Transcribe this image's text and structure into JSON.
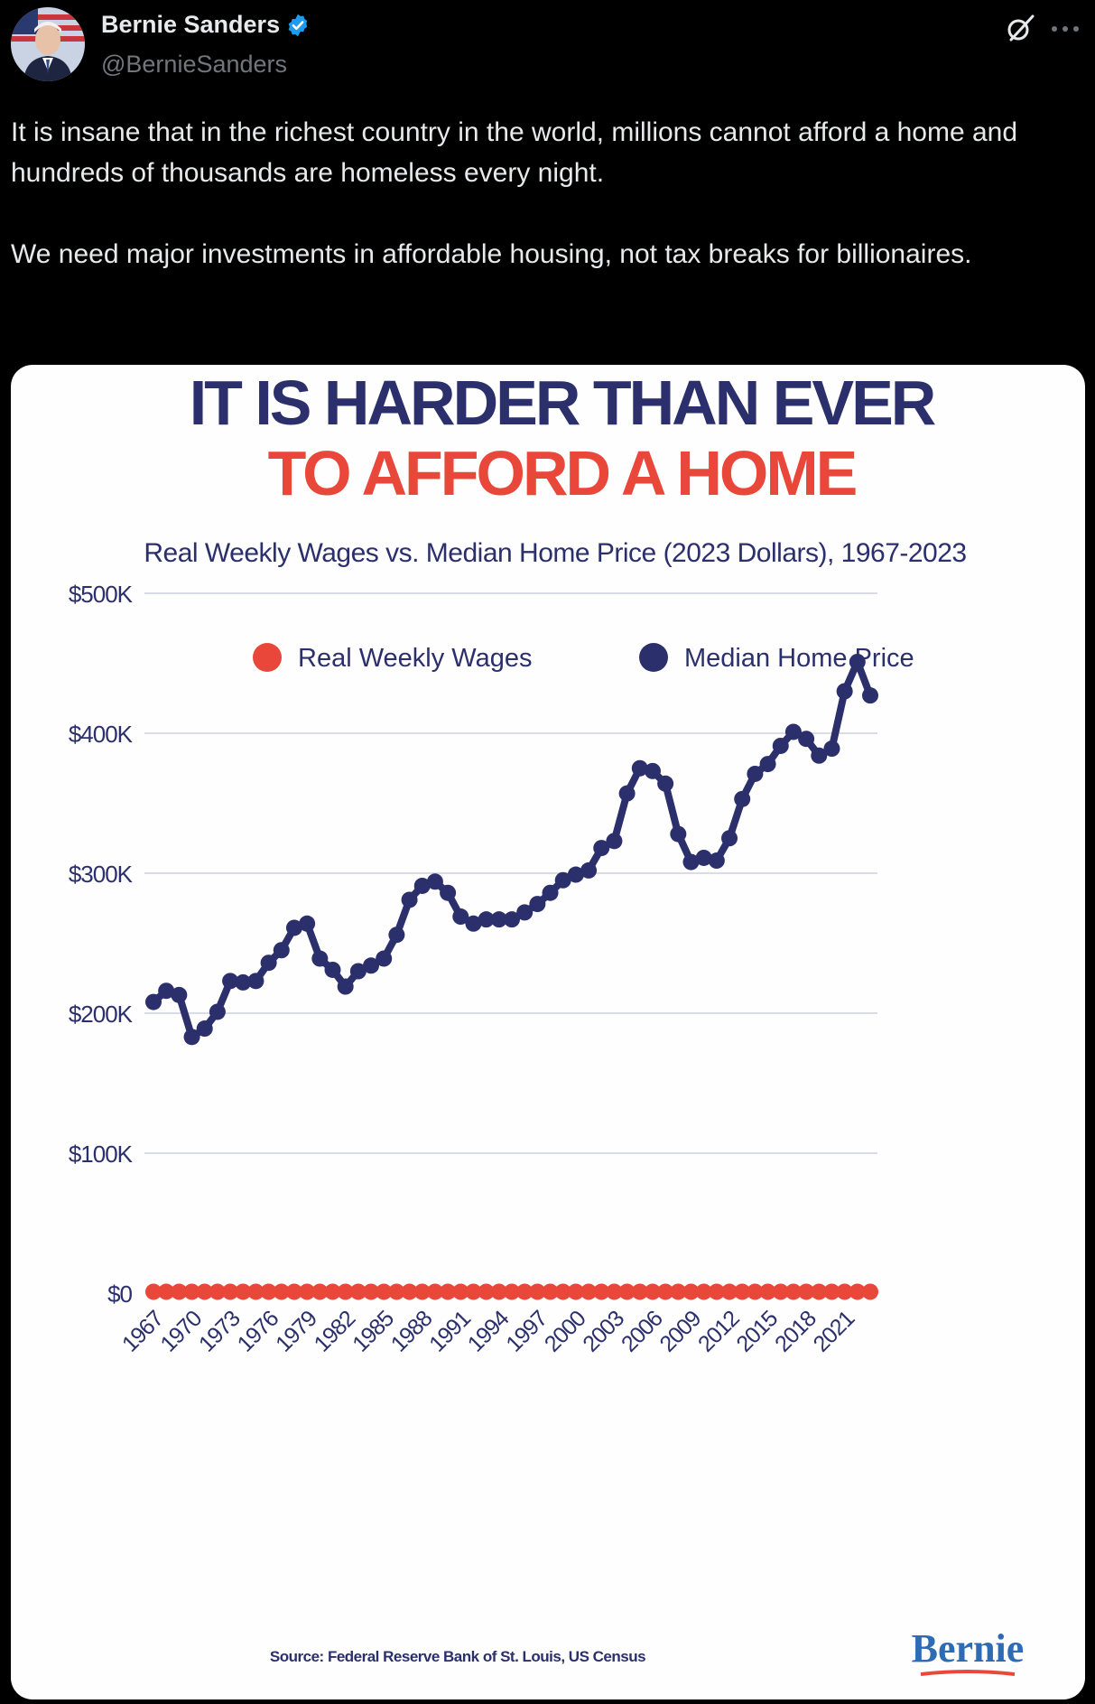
{
  "post": {
    "author_name": "Bernie Sanders",
    "author_handle": "@BernieSanders",
    "paragraphs": [
      "It is insane that in the richest country in the world, millions cannot afford a home and hundreds of thousands are homeless every night.",
      "We need major investments in affordable housing, not tax breaks for billionaires."
    ],
    "icons": {
      "verified": "verified-badge-icon",
      "grok": "grok-icon",
      "more": "more-options-icon"
    }
  },
  "colors": {
    "navy": "#2b2f6b",
    "red": "#e8473a",
    "verified_blue": "#1d9bf0"
  },
  "chart_data": {
    "type": "line",
    "title_line1": "IT IS HARDER THAN EVER",
    "title_line2": "TO AFFORD A HOME",
    "subtitle": "Real Weekly Wages vs. Median Home Price (2023 Dollars), 1967-2023",
    "legend": [
      "Real Weekly Wages",
      "Median Home Price"
    ],
    "legend_placement": "top-center",
    "y_ticks": [
      "$0",
      "$100K",
      "$200K",
      "$300K",
      "$400K",
      "$500K"
    ],
    "y_tick_values": [
      0,
      100000,
      200000,
      300000,
      400000,
      500000
    ],
    "ylim": [
      0,
      500000
    ],
    "x_tick_labels": [
      "1967",
      "1970",
      "1973",
      "1976",
      "1979",
      "1982",
      "1985",
      "1988",
      "1991",
      "1994",
      "1997",
      "2000",
      "2003",
      "2006",
      "2009",
      "2012",
      "2015",
      "2018",
      "2021"
    ],
    "x": [
      1967,
      1968,
      1969,
      1970,
      1971,
      1972,
      1973,
      1974,
      1975,
      1976,
      1977,
      1978,
      1979,
      1980,
      1981,
      1982,
      1983,
      1984,
      1985,
      1986,
      1987,
      1988,
      1989,
      1990,
      1991,
      1992,
      1993,
      1994,
      1995,
      1996,
      1997,
      1998,
      1999,
      2000,
      2001,
      2002,
      2003,
      2004,
      2005,
      2006,
      2007,
      2008,
      2009,
      2010,
      2011,
      2012,
      2013,
      2014,
      2015,
      2016,
      2017,
      2018,
      2019,
      2020,
      2021,
      2022,
      2023
    ],
    "series": [
      {
        "name": "Real Weekly Wages",
        "color": "#e8473a",
        "values": [
          1000,
          1000,
          1000,
          1000,
          1000,
          1000,
          1000,
          1000,
          1000,
          1000,
          1000,
          1000,
          1000,
          1000,
          1000,
          1000,
          1000,
          1000,
          1000,
          1000,
          1000,
          1000,
          1000,
          1000,
          1000,
          1000,
          1000,
          1000,
          1000,
          1000,
          1000,
          1000,
          1000,
          1000,
          1000,
          1000,
          1000,
          1000,
          1000,
          1000,
          1000,
          1000,
          1000,
          1000,
          1000,
          1000,
          1000,
          1000,
          1000,
          1000,
          1000,
          1000,
          1000,
          1000,
          1000,
          1000,
          1000
        ]
      },
      {
        "name": "Median Home Price",
        "color": "#2b2f6b",
        "values": [
          208000,
          216000,
          213000,
          183000,
          189000,
          201000,
          223000,
          222000,
          223000,
          236000,
          245000,
          261000,
          264000,
          239000,
          231000,
          219000,
          230000,
          234000,
          239000,
          256000,
          281000,
          291000,
          294000,
          286000,
          269000,
          264000,
          267000,
          267000,
          267000,
          272000,
          278000,
          286000,
          295000,
          299000,
          302000,
          318000,
          323000,
          357000,
          375000,
          373000,
          364000,
          328000,
          308000,
          311000,
          309000,
          325000,
          353000,
          371000,
          378000,
          391000,
          401000,
          396000,
          384000,
          389000,
          430000,
          451000,
          427000
        ]
      }
    ],
    "grid": true,
    "source": "Source: Federal Reserve Bank of St. Louis, US Census",
    "logo_text": "Bernie"
  }
}
